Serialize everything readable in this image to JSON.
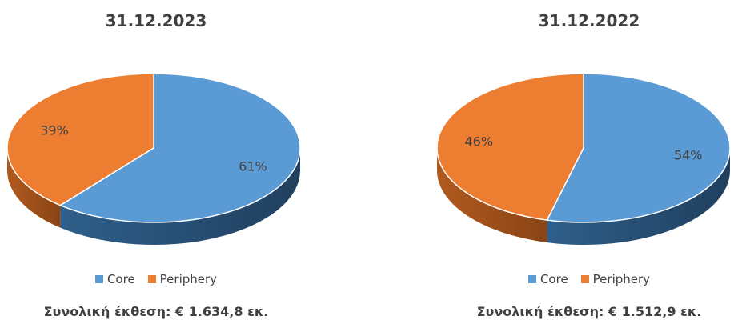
{
  "chart_data": [
    {
      "type": "pie",
      "title": "31.12.2023",
      "categories": [
        "Core",
        "Periphery"
      ],
      "values": [
        61,
        39
      ],
      "labels": [
        "61%",
        "39%"
      ],
      "colors": [
        "#5B9BD5",
        "#ED7D31"
      ],
      "legend": "bottom",
      "total": "Συνολική έκθεση: € 1.634,8 εκ."
    },
    {
      "type": "pie",
      "title": "31.12.2022",
      "categories": [
        "Core",
        "Periphery"
      ],
      "values": [
        54,
        46
      ],
      "labels": [
        "54%",
        "46%"
      ],
      "colors": [
        "#5B9BD5",
        "#ED7D31"
      ],
      "legend": "bottom",
      "total": "Συνολική έκθεση: € 1.512,9 εκ."
    }
  ]
}
